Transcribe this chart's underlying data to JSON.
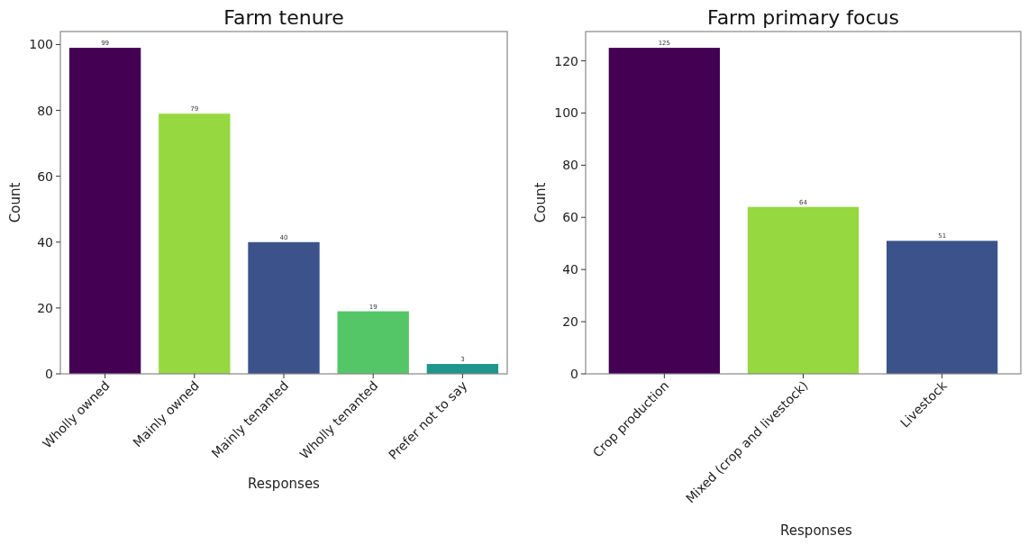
{
  "chart_data": [
    {
      "type": "bar",
      "title": "Farm tenure",
      "xlabel": "Responses",
      "ylabel": "Count",
      "categories": [
        "Wholly owned",
        "Mainly owned",
        "Mainly tenanted",
        "Wholly tenanted",
        "Prefer not to say"
      ],
      "values": [
        99,
        79,
        40,
        19,
        3
      ],
      "colors": [
        "#440154",
        "#95d840",
        "#3b528b",
        "#55c667",
        "#1f968b"
      ],
      "ylim": [
        0,
        103.95
      ],
      "yticks": [
        0,
        20,
        40,
        60,
        80,
        100
      ],
      "data_labels": true,
      "grid": false
    },
    {
      "type": "bar",
      "title": "Farm primary focus",
      "xlabel": "Responses",
      "ylabel": "Count",
      "categories": [
        "Crop production",
        "Mixed (crop and livestock)",
        "Livestock"
      ],
      "values": [
        125,
        64,
        51
      ],
      "colors": [
        "#440154",
        "#95d840",
        "#3b528b"
      ],
      "ylim": [
        0,
        131.25
      ],
      "yticks": [
        0,
        20,
        40,
        60,
        80,
        100,
        120
      ],
      "data_labels": true,
      "grid": false
    }
  ]
}
